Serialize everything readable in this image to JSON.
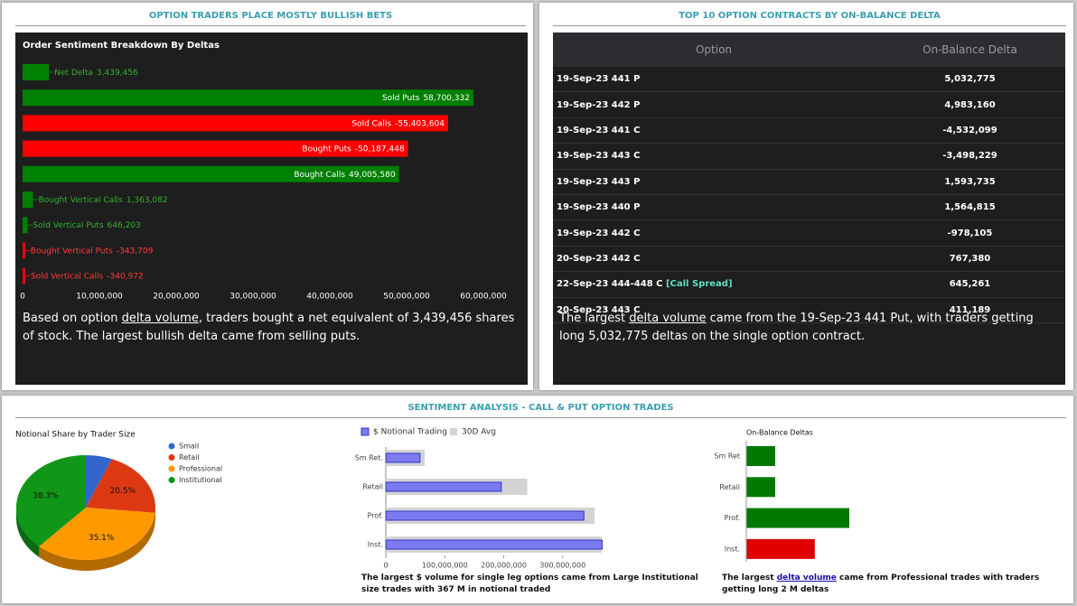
{
  "panels": [
    {
      "title": "OPTION TRADERS PLACE MOSTLY BULLISH BETS",
      "note": {
        "before": "Based on option ",
        "link": "delta volume",
        "after": ", traders bought a net equivalent of 3,439,456 shares of stock. The largest bullish delta came from selling puts."
      }
    },
    {
      "title": "TOP 10 OPTION CONTRACTS BY ON-BALANCE DELTA",
      "note": {
        "before": "The largest ",
        "link": "delta volume",
        "after": " came from the 19-Sep-23 441 Put, with traders getting long 5,032,775 deltas on the single option contract."
      }
    },
    {
      "title": "SENTIMENT ANALYSIS - CALL & PUT OPTION TRADES",
      "note": "The largest $ volume for single leg options came from Large Institutional size trades with 367 M in notional traded",
      "note2": {
        "before": "The largest ",
        "link": "delta volume",
        "after": " came from Professional trades with traders getting long 2 M deltas"
      }
    }
  ],
  "contracts_table": {
    "header": [
      "Option",
      "On-Balance Delta"
    ],
    "rows": [
      {
        "option": "19-Sep-23 441 P",
        "delta": "5,032,775"
      },
      {
        "option": "19-Sep-23 442 P",
        "delta": "4,983,160"
      },
      {
        "option": "19-Sep-23 441 C",
        "delta": "-4,532,099"
      },
      {
        "option": "19-Sep-23 443 C",
        "delta": "-3,498,229"
      },
      {
        "option": "19-Sep-23 443 P",
        "delta": "1,593,735"
      },
      {
        "option": "19-Sep-23 440 P",
        "delta": "1,564,815"
      },
      {
        "option": "19-Sep-23 442 C",
        "delta": "-978,105"
      },
      {
        "option": "20-Sep-23 442 C",
        "delta": "767,380"
      },
      {
        "option": "22-Sep-23 444-448 C",
        "tag": "[Call Spread]",
        "delta": "645,261"
      },
      {
        "option": "20-Sep-23 443 C",
        "delta": "411,189"
      }
    ]
  },
  "chart_data": [
    {
      "type": "bar",
      "orientation": "horizontal",
      "title": "Order Sentiment Breakdown By Deltas",
      "categories": [
        "Net Delta",
        "Sold Puts",
        "Sold Calls",
        "Bought Puts",
        "Bought Calls",
        "Bought Vertical Calls",
        "Sold Vertical Puts",
        "Bought Vertical Puts",
        "Sold Vertical Calls"
      ],
      "values": [
        3439456,
        58700332,
        -55403604,
        -50187448,
        49005580,
        1363082,
        646203,
        -343709,
        -340972
      ],
      "value_labels": [
        "3,439,456",
        "58,700,332",
        "-55,403,604",
        "-50,187,448",
        "49,005,580",
        "1,363,082",
        "646,203",
        "-343,709",
        "-340,972"
      ],
      "colors": [
        "#008000",
        "#008000",
        "#ff0000",
        "#ff0000",
        "#008000",
        "#008000",
        "#008000",
        "#ff0000",
        "#ff0000"
      ],
      "xlim": [
        0,
        60000000
      ],
      "xticks": [
        0,
        {
          "value": 10000000,
          "label": "10,000,000"
        },
        {
          "value": 20000000,
          "label": "20,000,000"
        },
        {
          "value": 30000000,
          "label": "30,000,000"
        },
        {
          "value": 40000000,
          "label": "40,000,000"
        },
        {
          "value": 50000000,
          "label": "50,000,000"
        },
        {
          "value": 60000000,
          "label": "60,000,000"
        }
      ]
    },
    {
      "type": "pie",
      "title": "Notional Share by Trader Size",
      "categories": [
        "Small",
        "Retail",
        "Professional",
        "Institutional"
      ],
      "values": [
        6.1,
        20.5,
        35.1,
        38.3
      ],
      "value_labels": [
        null,
        "20.5%",
        "35.1%",
        "38.3%"
      ],
      "colors": [
        "#3366cc",
        "#dc3912",
        "#ff9900",
        "#109618"
      ]
    },
    {
      "type": "grouped-bar",
      "orientation": "horizontal",
      "categories": [
        "Sm Ret.",
        "Retail",
        "Prof.",
        "Inst."
      ],
      "series": [
        {
          "name": "$ Notional Trading",
          "color": "#7b7bef",
          "values": [
            58000000,
            196000000,
            336000000,
            367000000
          ]
        },
        {
          "name": "30D Avg",
          "color": "#d3d3d3",
          "values": [
            66000000,
            240000000,
            354000000,
            366000000
          ]
        }
      ],
      "xlim": [
        0,
        400000000
      ],
      "xticks": [
        0,
        {
          "value": 100000000,
          "label": "100,000,000"
        },
        {
          "value": 200000000,
          "label": "200,000,000"
        },
        {
          "value": 300000000,
          "label": "300,000,000"
        }
      ]
    },
    {
      "type": "bar",
      "orientation": "horizontal",
      "title": "On-Balance Deltas",
      "categories": [
        "Sm Ret",
        "Retail",
        "Prof.",
        "Inst."
      ],
      "values": [
        560000,
        560000,
        2000000,
        -1330000
      ],
      "colors": [
        "#007a00",
        "#007a00",
        "#007a00",
        "#e00000"
      ]
    }
  ]
}
